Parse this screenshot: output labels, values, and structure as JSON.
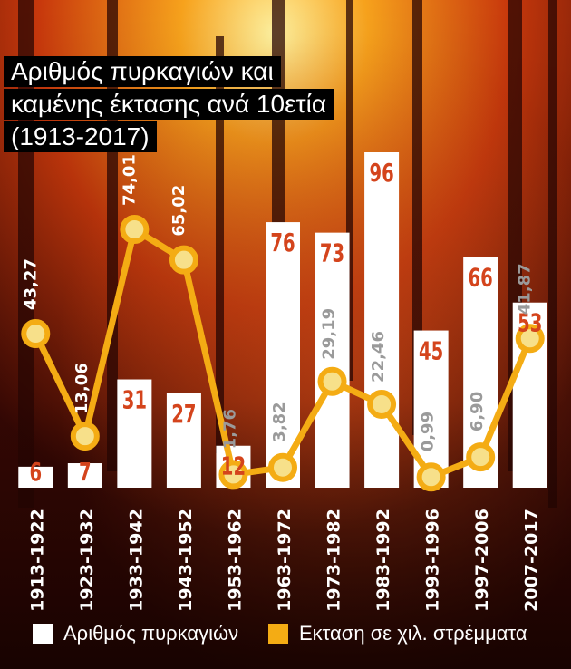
{
  "title_lines": [
    "Αριθμός πυρκαγιών και",
    "καμένης έκτασης ανά 10ετία",
    "(1913-2017)"
  ],
  "colors": {
    "bars": "#ffffff",
    "line": "#f4ac14",
    "bar_label": "#d4441c",
    "muted_label": "#9a9a9a"
  },
  "legend": {
    "bars_label": "Αριθμός πυρκαγιών",
    "line_label": "Εκταση σε χιλ. στρέμματα"
  },
  "chart_data": {
    "type": "bar",
    "categories": [
      "1913-1922",
      "1923-1932",
      "1933-1942",
      "1943-1952",
      "1953-1962",
      "1963-1972",
      "1973-1982",
      "1983-1992",
      "1993-1996",
      "1997-2006",
      "2007-2017"
    ],
    "series": [
      {
        "name": "Αριθμός πυρκαγιών",
        "type": "bar",
        "values": [
          6,
          7,
          31,
          27,
          12,
          76,
          73,
          96,
          45,
          66,
          53
        ],
        "labels": [
          "6",
          "7",
          "31",
          "27",
          "12",
          "76",
          "73",
          "96",
          "45",
          "66",
          "53"
        ]
      },
      {
        "name": "Εκταση σε χιλ. στρέμματα",
        "type": "line",
        "values": [
          43.27,
          13.06,
          74.01,
          65.02,
          1.76,
          3.82,
          29.19,
          22.46,
          0.99,
          6.9,
          41.87
        ],
        "labels": [
          "43,27",
          "13,06",
          "74,01",
          "65,02",
          "1,76",
          "3,82",
          "29,19",
          "22,46",
          "0,99",
          "6,90",
          "41,87"
        ]
      }
    ],
    "legend": "bottom"
  }
}
